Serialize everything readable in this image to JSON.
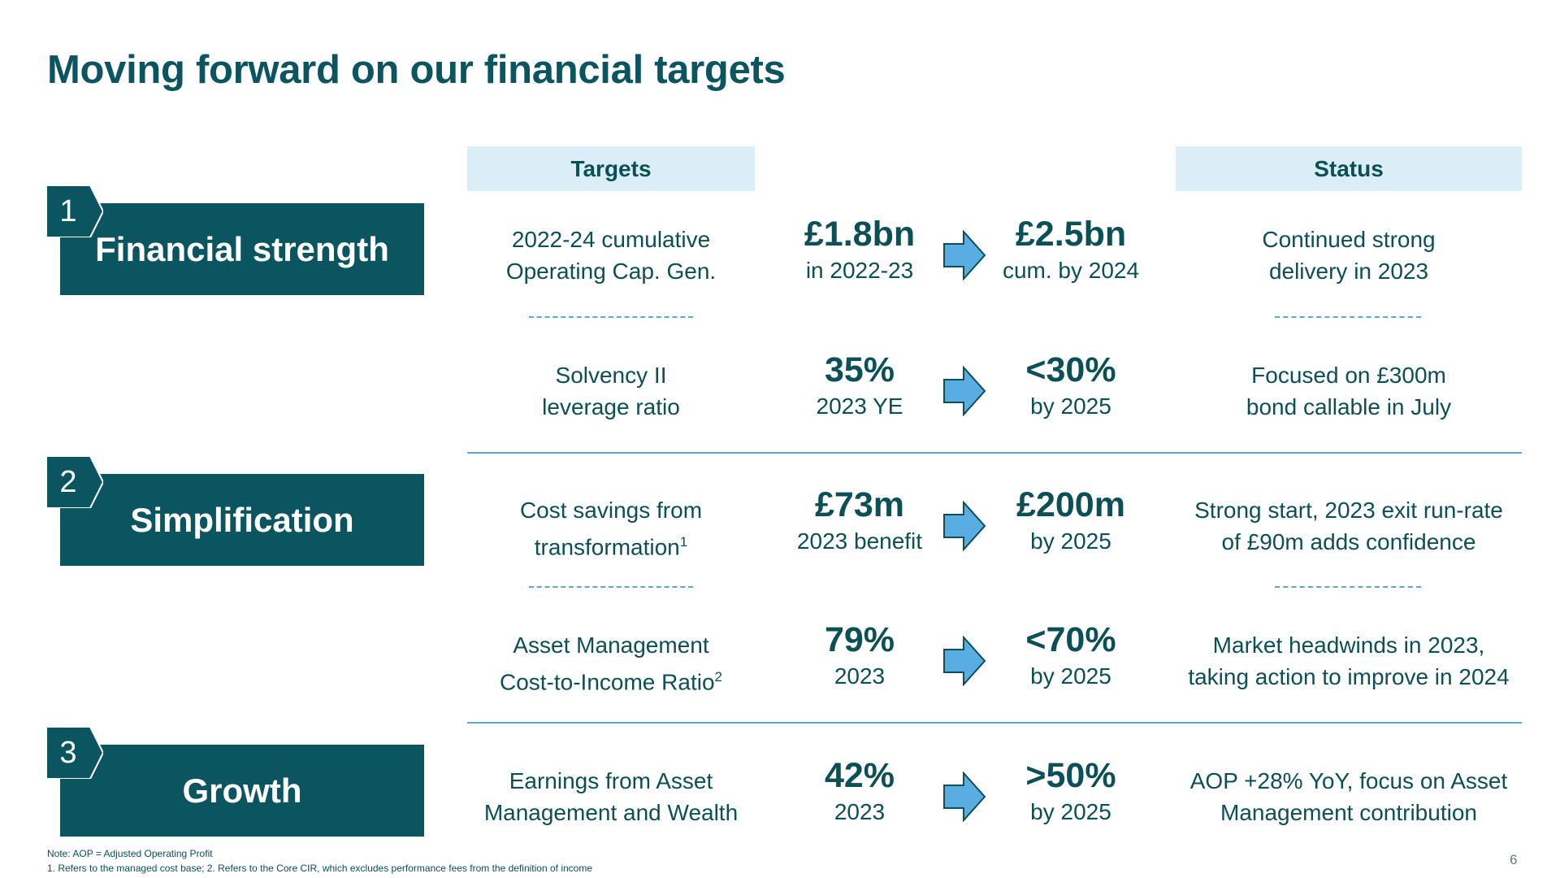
{
  "title": "Moving forward on our financial targets",
  "headers": {
    "targets": "Targets",
    "status": "Status"
  },
  "sections": [
    {
      "number": "1",
      "label": "Financial strength"
    },
    {
      "number": "2",
      "label": "Simplification"
    },
    {
      "number": "3",
      "label": "Growth"
    }
  ],
  "rows": [
    {
      "target_line1": "2022-24 cumulative",
      "target_line2": "Operating Cap. Gen.",
      "target_sup": "",
      "current_value": "£1.8bn",
      "current_label": "in 2022-23",
      "target_value": "£2.5bn",
      "target_label": "cum. by 2024",
      "status_line1": "Continued strong",
      "status_line2": "delivery in 2023"
    },
    {
      "target_line1": "Solvency II",
      "target_line2": "leverage ratio",
      "target_sup": "",
      "current_value": "35%",
      "current_label": "2023 YE",
      "target_value": "<30%",
      "target_label": "by 2025",
      "status_line1": "Focused on £300m",
      "status_line2": "bond callable in July"
    },
    {
      "target_line1": "Cost savings from",
      "target_line2": "transformation",
      "target_sup": "1",
      "current_value": "£73m",
      "current_label": "2023 benefit",
      "target_value": "£200m",
      "target_label": "by 2025",
      "status_line1": "Strong start, 2023 exit run-rate",
      "status_line2": "of £90m adds confidence"
    },
    {
      "target_line1": "Asset Management",
      "target_line2": "Cost-to-Income Ratio",
      "target_sup": "2",
      "current_value": "79%",
      "current_label": "2023",
      "target_value": "<70%",
      "target_label": "by 2025",
      "status_line1": "Market headwinds in 2023,",
      "status_line2": "taking action to improve in 2024"
    },
    {
      "target_line1": "Earnings from Asset",
      "target_line2": "Management and Wealth",
      "target_sup": "",
      "current_value": "42%",
      "current_label": "2023",
      "target_value": ">50%",
      "target_label": "by 2025",
      "status_line1": "AOP +28% YoY, focus on Asset",
      "status_line2": "Management contribution"
    }
  ],
  "notes": {
    "line1": "Note:  AOP = Adjusted Operating Profit",
    "line2": "1. Refers to the managed cost base;  2. Refers to the Core CIR, which excludes performance fees from the definition of income"
  },
  "page_number": "6",
  "colors": {
    "primary": "#0b5560",
    "header_bg": "#dbeef8",
    "arrow": "#5aade0",
    "divider": "#5aa9cf"
  }
}
